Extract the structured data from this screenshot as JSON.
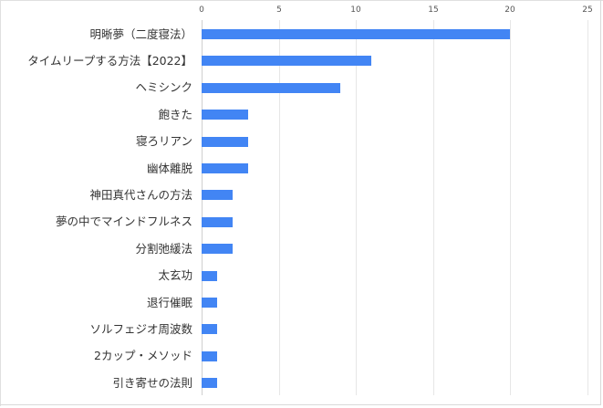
{
  "chart_data": {
    "type": "bar",
    "orientation": "horizontal",
    "title": "",
    "xlabel": "",
    "ylabel": "",
    "xlim": [
      0,
      25
    ],
    "x_ticks": [
      "0",
      "5",
      "10",
      "15",
      "20",
      "25"
    ],
    "grid": true,
    "legend": null,
    "bar_color": "#4285F4",
    "categories": [
      "明晰夢（二度寝法）",
      "タイムリープする方法【2022】",
      "ヘミシンク",
      "飽きた",
      "寝ろリアン",
      "幽体離脱",
      "神田真代さんの方法",
      "夢の中でマインドフルネス",
      "分割弛緩法",
      "太玄功",
      "退行催眠",
      "ソルフェジオ周波数",
      "2カップ・メソッド",
      "引き寄せの法則"
    ],
    "values": [
      20,
      11,
      9,
      3,
      3,
      3,
      2,
      2,
      2,
      1,
      1,
      1,
      1,
      1
    ]
  }
}
